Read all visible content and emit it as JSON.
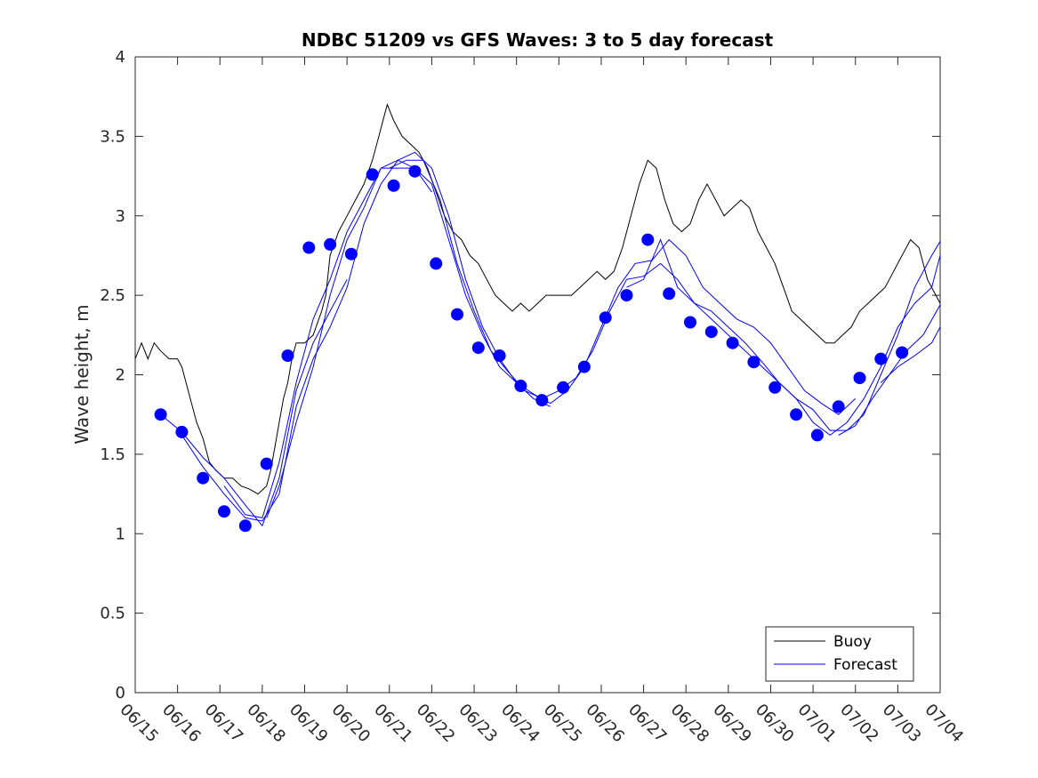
{
  "chart_data": {
    "type": "line",
    "title": "NDBC 51209 vs GFS Waves: 3 to 5 day forecast",
    "xlabel": "",
    "ylabel": "Wave height, m",
    "x_ticks": [
      "06/15",
      "06/16",
      "06/17",
      "06/18",
      "06/19",
      "06/20",
      "06/21",
      "06/22",
      "06/23",
      "06/24",
      "06/25",
      "06/26",
      "06/27",
      "06/28",
      "06/29",
      "06/30",
      "07/01",
      "07/02",
      "07/03",
      "07/04"
    ],
    "y_ticks": [
      "0",
      "0.5",
      "1",
      "1.5",
      "2",
      "2.5",
      "3",
      "3.5",
      "4"
    ],
    "ylim": [
      0,
      4
    ],
    "xlim_days": [
      0,
      19
    ],
    "legend_position": "bottom-right",
    "colors": {
      "buoy": "#000000",
      "forecast": "#0000ff",
      "axis": "#262626"
    },
    "series": [
      {
        "name": "Buoy",
        "style": "line",
        "points": [
          [
            0.0,
            2.1
          ],
          [
            0.15,
            2.2
          ],
          [
            0.3,
            2.1
          ],
          [
            0.45,
            2.2
          ],
          [
            0.6,
            2.15
          ],
          [
            0.8,
            2.1
          ],
          [
            1.0,
            2.1
          ],
          [
            1.1,
            2.05
          ],
          [
            1.2,
            1.95
          ],
          [
            1.3,
            1.85
          ],
          [
            1.45,
            1.7
          ],
          [
            1.6,
            1.6
          ],
          [
            1.75,
            1.45
          ],
          [
            1.9,
            1.4
          ],
          [
            2.1,
            1.35
          ],
          [
            2.3,
            1.35
          ],
          [
            2.5,
            1.3
          ],
          [
            2.7,
            1.28
          ],
          [
            2.9,
            1.25
          ],
          [
            3.1,
            1.3
          ],
          [
            3.2,
            1.4
          ],
          [
            3.3,
            1.55
          ],
          [
            3.4,
            1.7
          ],
          [
            3.5,
            1.85
          ],
          [
            3.6,
            1.95
          ],
          [
            3.7,
            2.1
          ],
          [
            3.8,
            2.2
          ],
          [
            4.0,
            2.2
          ],
          [
            4.2,
            2.25
          ],
          [
            4.4,
            2.4
          ],
          [
            4.5,
            2.5
          ],
          [
            4.6,
            2.75
          ],
          [
            4.8,
            2.9
          ],
          [
            5.0,
            3.0
          ],
          [
            5.2,
            3.1
          ],
          [
            5.4,
            3.2
          ],
          [
            5.6,
            3.35
          ],
          [
            5.75,
            3.5
          ],
          [
            5.85,
            3.6
          ],
          [
            5.95,
            3.7
          ],
          [
            6.1,
            3.6
          ],
          [
            6.3,
            3.5
          ],
          [
            6.5,
            3.45
          ],
          [
            6.7,
            3.4
          ],
          [
            6.9,
            3.3
          ],
          [
            7.1,
            3.15
          ],
          [
            7.3,
            3.0
          ],
          [
            7.5,
            2.9
          ],
          [
            7.7,
            2.85
          ],
          [
            7.9,
            2.75
          ],
          [
            8.1,
            2.7
          ],
          [
            8.3,
            2.6
          ],
          [
            8.5,
            2.5
          ],
          [
            8.7,
            2.45
          ],
          [
            8.9,
            2.4
          ],
          [
            9.1,
            2.45
          ],
          [
            9.3,
            2.4
          ],
          [
            9.5,
            2.45
          ],
          [
            9.7,
            2.5
          ],
          [
            9.9,
            2.5
          ],
          [
            10.1,
            2.5
          ],
          [
            10.3,
            2.5
          ],
          [
            10.5,
            2.55
          ],
          [
            10.7,
            2.6
          ],
          [
            10.9,
            2.65
          ],
          [
            11.1,
            2.6
          ],
          [
            11.3,
            2.65
          ],
          [
            11.5,
            2.8
          ],
          [
            11.7,
            3.0
          ],
          [
            11.9,
            3.2
          ],
          [
            12.1,
            3.35
          ],
          [
            12.3,
            3.3
          ],
          [
            12.5,
            3.1
          ],
          [
            12.7,
            2.95
          ],
          [
            12.9,
            2.9
          ],
          [
            13.1,
            2.95
          ],
          [
            13.3,
            3.1
          ],
          [
            13.5,
            3.2
          ],
          [
            13.7,
            3.1
          ],
          [
            13.9,
            3.0
          ],
          [
            14.1,
            3.05
          ],
          [
            14.3,
            3.1
          ],
          [
            14.5,
            3.05
          ],
          [
            14.7,
            2.9
          ],
          [
            14.9,
            2.8
          ],
          [
            15.1,
            2.7
          ],
          [
            15.3,
            2.55
          ],
          [
            15.5,
            2.4
          ],
          [
            15.7,
            2.35
          ],
          [
            15.9,
            2.3
          ],
          [
            16.1,
            2.25
          ],
          [
            16.3,
            2.2
          ],
          [
            16.5,
            2.2
          ],
          [
            16.7,
            2.25
          ],
          [
            16.9,
            2.3
          ],
          [
            17.1,
            2.4
          ],
          [
            17.3,
            2.45
          ],
          [
            17.5,
            2.5
          ],
          [
            17.7,
            2.55
          ],
          [
            17.9,
            2.65
          ],
          [
            18.1,
            2.75
          ],
          [
            18.3,
            2.85
          ],
          [
            18.5,
            2.8
          ],
          [
            18.7,
            2.6
          ],
          [
            18.9,
            2.5
          ],
          [
            19.0,
            2.45
          ]
        ]
      },
      {
        "name": "Forecast",
        "style": "line",
        "lines": [
          [
            [
              0.6,
              1.75
            ],
            [
              1.1,
              1.64
            ],
            [
              1.6,
              1.48
            ],
            [
              2.1,
              1.35
            ],
            [
              2.6,
              1.18
            ],
            [
              3.0,
              1.05
            ],
            [
              3.4,
              1.35
            ],
            [
              3.8,
              1.9
            ],
            [
              4.2,
              2.2
            ],
            [
              4.6,
              2.4
            ],
            [
              5.0,
              2.6
            ]
          ],
          [
            [
              1.1,
              1.62
            ],
            [
              1.6,
              1.42
            ],
            [
              2.1,
              1.25
            ],
            [
              2.6,
              1.1
            ],
            [
              3.0,
              1.08
            ],
            [
              3.4,
              1.25
            ],
            [
              3.8,
              1.8
            ],
            [
              4.2,
              2.1
            ],
            [
              4.6,
              2.3
            ],
            [
              5.0,
              2.55
            ],
            [
              5.4,
              2.95
            ],
            [
              5.8,
              3.2
            ],
            [
              6.2,
              3.35
            ],
            [
              6.6,
              3.3
            ],
            [
              7.0,
              3.15
            ]
          ],
          [
            [
              2.1,
              1.3
            ],
            [
              2.6,
              1.12
            ],
            [
              3.0,
              1.1
            ],
            [
              3.4,
              1.45
            ],
            [
              3.8,
              1.95
            ],
            [
              4.2,
              2.35
            ],
            [
              4.6,
              2.6
            ],
            [
              5.0,
              2.9
            ],
            [
              5.4,
              3.1
            ],
            [
              5.8,
              3.3
            ],
            [
              6.2,
              3.3
            ],
            [
              6.6,
              3.3
            ],
            [
              7.0,
              3.2
            ],
            [
              7.4,
              2.85
            ],
            [
              7.8,
              2.5
            ],
            [
              8.2,
              2.25
            ],
            [
              8.6,
              2.05
            ],
            [
              9.0,
              1.95
            ],
            [
              9.4,
              1.85
            ],
            [
              9.8,
              1.8
            ]
          ],
          [
            [
              3.1,
              1.1
            ],
            [
              3.4,
              1.3
            ],
            [
              3.8,
              1.7
            ],
            [
              4.2,
              2.05
            ],
            [
              4.6,
              2.5
            ],
            [
              5.0,
              2.85
            ],
            [
              5.4,
              3.05
            ],
            [
              5.8,
              3.3
            ],
            [
              6.2,
              3.35
            ],
            [
              6.6,
              3.4
            ],
            [
              7.0,
              3.3
            ],
            [
              7.4,
              3.0
            ],
            [
              7.8,
              2.6
            ],
            [
              8.2,
              2.3
            ],
            [
              8.6,
              2.1
            ],
            [
              9.0,
              1.95
            ],
            [
              9.4,
              1.88
            ],
            [
              9.8,
              1.82
            ],
            [
              10.2,
              1.9
            ],
            [
              10.6,
              2.05
            ],
            [
              11.0,
              2.3
            ],
            [
              11.4,
              2.55
            ],
            [
              11.8,
              2.7
            ],
            [
              12.2,
              2.72
            ],
            [
              12.6,
              2.85
            ],
            [
              13.0,
              2.75
            ],
            [
              13.4,
              2.55
            ],
            [
              13.8,
              2.45
            ],
            [
              14.2,
              2.35
            ],
            [
              14.6,
              2.3
            ],
            [
              15.0,
              2.2
            ],
            [
              15.4,
              2.05
            ],
            [
              15.8,
              1.9
            ],
            [
              16.2,
              1.82
            ],
            [
              16.6,
              1.75
            ],
            [
              17.0,
              1.85
            ]
          ],
          [
            [
              6.0,
              3.3
            ],
            [
              6.4,
              3.35
            ],
            [
              6.8,
              3.35
            ],
            [
              7.2,
              3.1
            ],
            [
              7.6,
              2.7
            ],
            [
              8.0,
              2.4
            ],
            [
              8.4,
              2.15
            ],
            [
              8.8,
              2.02
            ],
            [
              9.2,
              1.9
            ],
            [
              9.6,
              1.85
            ],
            [
              10.0,
              1.9
            ],
            [
              10.4,
              1.98
            ],
            [
              10.8,
              2.15
            ],
            [
              11.2,
              2.4
            ],
            [
              11.6,
              2.6
            ],
            [
              12.0,
              2.62
            ],
            [
              12.4,
              2.7
            ],
            [
              12.8,
              2.6
            ],
            [
              13.2,
              2.45
            ],
            [
              13.6,
              2.35
            ],
            [
              14.0,
              2.25
            ],
            [
              14.4,
              2.15
            ],
            [
              14.8,
              2.05
            ],
            [
              15.2,
              1.95
            ],
            [
              15.6,
              1.85
            ],
            [
              16.0,
              1.78
            ],
            [
              16.4,
              1.65
            ],
            [
              16.8,
              1.65
            ],
            [
              17.2,
              1.75
            ],
            [
              17.6,
              2.0
            ],
            [
              18.0,
              2.25
            ],
            [
              18.4,
              2.55
            ],
            [
              18.8,
              2.75
            ],
            [
              19.0,
              2.84
            ]
          ],
          [
            [
              11.6,
              2.55
            ],
            [
              12.0,
              2.6
            ],
            [
              12.4,
              2.85
            ],
            [
              12.8,
              2.55
            ],
            [
              13.2,
              2.45
            ],
            [
              13.6,
              2.4
            ],
            [
              14.0,
              2.3
            ],
            [
              14.4,
              2.2
            ],
            [
              14.8,
              2.08
            ],
            [
              15.2,
              1.95
            ],
            [
              15.6,
              1.85
            ],
            [
              16.0,
              1.7
            ],
            [
              16.4,
              1.62
            ],
            [
              16.8,
              1.7
            ],
            [
              17.2,
              1.85
            ],
            [
              17.6,
              2.05
            ],
            [
              18.0,
              2.3
            ],
            [
              18.4,
              2.45
            ],
            [
              18.8,
              2.55
            ],
            [
              19.0,
              2.75
            ]
          ],
          [
            [
              16.6,
              1.62
            ],
            [
              17.0,
              1.68
            ],
            [
              17.4,
              1.85
            ],
            [
              17.8,
              2.0
            ],
            [
              18.2,
              2.15
            ],
            [
              18.6,
              2.25
            ],
            [
              19.0,
              2.44
            ]
          ],
          [
            [
              17.6,
              1.95
            ],
            [
              18.0,
              2.05
            ],
            [
              18.4,
              2.12
            ],
            [
              18.8,
              2.2
            ],
            [
              19.0,
              2.3
            ]
          ]
        ],
        "markers": [
          [
            0.6,
            1.75
          ],
          [
            1.1,
            1.64
          ],
          [
            1.6,
            1.35
          ],
          [
            2.1,
            1.14
          ],
          [
            2.6,
            1.05
          ],
          [
            3.1,
            1.44
          ],
          [
            3.6,
            2.12
          ],
          [
            4.1,
            2.8
          ],
          [
            4.6,
            2.82
          ],
          [
            5.1,
            2.76
          ],
          [
            5.6,
            3.26
          ],
          [
            6.1,
            3.19
          ],
          [
            6.6,
            3.28
          ],
          [
            7.1,
            2.7
          ],
          [
            7.6,
            2.38
          ],
          [
            8.1,
            2.17
          ],
          [
            8.6,
            2.12
          ],
          [
            9.1,
            1.93
          ],
          [
            9.6,
            1.84
          ],
          [
            10.1,
            1.92
          ],
          [
            10.6,
            2.05
          ],
          [
            11.1,
            2.36
          ],
          [
            11.6,
            2.5
          ],
          [
            12.1,
            2.85
          ],
          [
            12.6,
            2.51
          ],
          [
            13.1,
            2.33
          ],
          [
            13.6,
            2.27
          ],
          [
            14.1,
            2.2
          ],
          [
            14.6,
            2.08
          ],
          [
            15.1,
            1.92
          ],
          [
            15.6,
            1.75
          ],
          [
            16.1,
            1.62
          ],
          [
            16.6,
            1.8
          ],
          [
            17.1,
            1.98
          ],
          [
            17.6,
            2.1
          ],
          [
            18.1,
            2.14
          ]
        ]
      }
    ]
  }
}
